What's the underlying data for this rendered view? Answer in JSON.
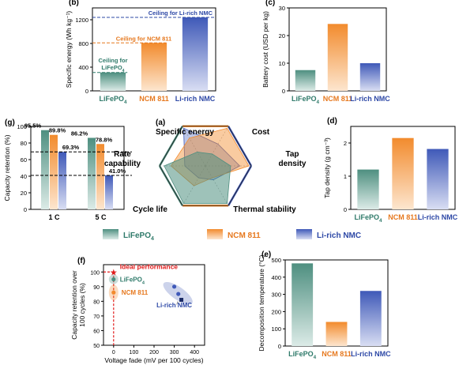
{
  "colors": {
    "lfp": "#4e8f80",
    "ncm": "#f28b2d",
    "li_rich": "#3f59b8",
    "lfp_text": "#2f7a6a",
    "ncm_text": "#e6781e",
    "li_rich_text": "#2d48a6",
    "ideal": "#e11b1b"
  },
  "legend": {
    "items": [
      {
        "label": "LiFePO",
        "sub": "4",
        "color_key": "lfp"
      },
      {
        "label": "NCM 811",
        "sub": "",
        "color_key": "ncm"
      },
      {
        "label": "Li-rich NMC",
        "sub": "",
        "color_key": "li_rich"
      }
    ]
  },
  "chart_data": [
    {
      "panel": "(b)",
      "type": "bar",
      "categories": [
        {
          "label": "LiFePO",
          "sub": "4"
        },
        {
          "label": "NCM 811",
          "sub": ""
        },
        {
          "label": "Li-rich NMC",
          "sub": ""
        }
      ],
      "values": [
        310,
        810,
        1240
      ],
      "ylabel": "Specific energy (Wh kg⁻¹)",
      "ylim": [
        0,
        1400
      ],
      "yticks": [
        0,
        400,
        800,
        1200
      ],
      "ceilings": [
        {
          "value": 1240,
          "label": "Ceiling for Li-rich NMC",
          "color_key": "li_rich_text"
        },
        {
          "value": 810,
          "label": "Ceiling for NCM 811",
          "color_key": "ncm_text"
        },
        {
          "value": 310,
          "label_lines": [
            "Ceiling for",
            "LiFePO"
          ],
          "sub": "4",
          "color_key": "lfp_text"
        }
      ]
    },
    {
      "panel": "(c)",
      "type": "bar",
      "categories": [
        {
          "label": "LiFePO",
          "sub": "4"
        },
        {
          "label": "NCM 811",
          "sub": ""
        },
        {
          "label": "Li-rich NMC",
          "sub": ""
        }
      ],
      "values": [
        7.5,
        24.2,
        10
      ],
      "ylabel": "Battery cost (USD per kg)",
      "ylim": [
        0,
        30
      ],
      "yticks": [
        0,
        10,
        20,
        30
      ]
    },
    {
      "panel": "(g)",
      "type": "bar",
      "categories": [
        "1 C",
        "5 C"
      ],
      "series": [
        {
          "values": [
            95.5,
            86.2
          ],
          "labels": [
            "95.5%",
            "86.2%"
          ],
          "color_key": "lfp"
        },
        {
          "values": [
            89.8,
            78.8
          ],
          "labels": [
            "89.8%",
            "78.8%"
          ],
          "color_key": "ncm"
        },
        {
          "values": [
            69.3,
            41.0
          ],
          "labels": [
            "69.3%",
            "41.0%"
          ],
          "color_key": "li_rich"
        }
      ],
      "ylabel": "Capacity retention (%)",
      "ylim": [
        0,
        100
      ],
      "yticks": [
        0,
        20,
        40,
        60,
        80,
        100
      ],
      "reference_lines": [
        69.3,
        41.0
      ]
    },
    {
      "panel": "(a)",
      "type": "radar",
      "axes": [
        "Cost",
        "Tap density",
        "Thermal stability",
        "Cycle life",
        "Rate capability",
        "Specific energy"
      ]
    },
    {
      "panel": "(d)",
      "type": "bar",
      "categories": [
        {
          "label": "LiFePO",
          "sub": "4"
        },
        {
          "label": "NCM 811",
          "sub": ""
        },
        {
          "label": "Li-rich NMC",
          "sub": ""
        }
      ],
      "values": [
        1.2,
        2.15,
        1.82
      ],
      "ylabel": "Tap density (g cm⁻³)",
      "ylim": [
        0,
        2.5
      ],
      "yticks": [
        0,
        1,
        2
      ]
    },
    {
      "panel": "(f)",
      "type": "scatter",
      "xlabel": "Voltage fade (mV per 100 cycles)",
      "ylabel_lines": [
        "Capacity retention over",
        "100 cycles (%)"
      ],
      "xlim": [
        -50,
        450
      ],
      "ylim": [
        50,
        105
      ],
      "xticks": [
        0,
        100,
        200,
        300,
        400
      ],
      "yticks": [
        50,
        60,
        70,
        80,
        90,
        100
      ],
      "points": [
        {
          "x": 0,
          "y": 100,
          "color_key": "ideal",
          "marker": "star"
        },
        {
          "x": 0,
          "y": 95,
          "color_key": "lfp",
          "marker": "circle"
        },
        {
          "x": 0,
          "y": 86,
          "color_key": "ncm",
          "marker": "circle"
        },
        {
          "x": 300,
          "y": 90,
          "color_key": "li_rich",
          "marker": "circle"
        },
        {
          "x": 320,
          "y": 85,
          "color_key": "li_rich",
          "marker": "circle"
        },
        {
          "x": 335,
          "y": 81,
          "color_key": "li_rich",
          "marker": "square"
        }
      ],
      "labels": [
        {
          "text": "Ideal performance",
          "color_key": "ideal"
        },
        {
          "text": "LiFePO",
          "sub": "4",
          "color_key": "lfp_text"
        },
        {
          "text": "NCM 811",
          "color_key": "ncm_text"
        },
        {
          "text": "Li-rich NMC",
          "color_key": "li_rich_text"
        }
      ]
    },
    {
      "panel": "(e)",
      "type": "bar",
      "categories": [
        {
          "label": "LiFePO",
          "sub": "4"
        },
        {
          "label": "NCM 811",
          "sub": ""
        },
        {
          "label": "Li-rich NMC",
          "sub": ""
        }
      ],
      "values": [
        480,
        140,
        320
      ],
      "ylabel": "Decomposition temperature (°C)",
      "ylim": [
        0,
        500
      ],
      "yticks": [
        0,
        100,
        200,
        300,
        400,
        500
      ]
    }
  ]
}
